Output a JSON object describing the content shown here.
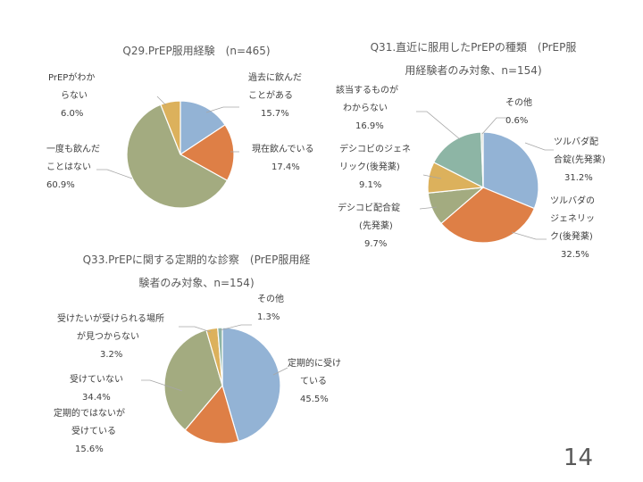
{
  "page_number": "14",
  "chart_data": [
    {
      "type": "pie",
      "title": "Q29.PrEP服用経験　(n=465)",
      "slices": [
        {
          "label_lines": [
            "過去に飲んだ",
            "ことがある"
          ],
          "pct_label": "15.7%",
          "value": 15.7,
          "color": "#93B3D5"
        },
        {
          "label_lines": [
            "現在飲んでいる"
          ],
          "pct_label": "17.4%",
          "value": 17.4,
          "color": "#DE7F46"
        },
        {
          "label_lines": [
            "一度も飲んだ",
            "ことはない"
          ],
          "pct_label": "60.9%",
          "value": 60.9,
          "color": "#A3AB80"
        },
        {
          "label_lines": [
            "PrEPがわか",
            "らない"
          ],
          "pct_label": "6.0%",
          "value": 6.0,
          "color": "#DCB15C"
        }
      ]
    },
    {
      "type": "pie",
      "title_lines": [
        "Q31.直近に服用したPrEPの種類　(PrEP服",
        "用経験者のみ対象、n=154)"
      ],
      "slices": [
        {
          "label_lines": [
            "ツルバダ配",
            "合錠(先発薬)"
          ],
          "pct_label": "31.2%",
          "value": 31.2,
          "color": "#93B3D5"
        },
        {
          "label_lines": [
            "ツルバダの",
            "ジェネリッ",
            "ク(後発薬)"
          ],
          "pct_label": "32.5%",
          "value": 32.5,
          "color": "#DE7F46"
        },
        {
          "label_lines": [
            "デシコビ配合錠",
            "(先発薬)"
          ],
          "pct_label": "9.7%",
          "value": 9.7,
          "color": "#A3AB80"
        },
        {
          "label_lines": [
            "デシコビのジェネ",
            "リック(後発薬)"
          ],
          "pct_label": "9.1%",
          "value": 9.1,
          "color": "#DCB15C"
        },
        {
          "label_lines": [
            "該当するものが",
            "わからない"
          ],
          "pct_label": "16.9%",
          "value": 16.9,
          "color": "#8DB5A5"
        },
        {
          "label_lines": [
            "その他"
          ],
          "pct_label": "0.6%",
          "value": 0.6,
          "color": "#D1D6C5"
        }
      ]
    },
    {
      "type": "pie",
      "title_lines": [
        "Q33.PrEPに関する定期的な診察　(PrEP服用経",
        "験者のみ対象、n=154)"
      ],
      "slices": [
        {
          "label_lines": [
            "定期的に受け",
            "ている"
          ],
          "pct_label": "45.5%",
          "value": 45.5,
          "color": "#93B3D5"
        },
        {
          "label_lines": [
            "定期的ではないが",
            "受けている"
          ],
          "pct_label": "15.6%",
          "value": 15.6,
          "color": "#DE7F46"
        },
        {
          "label_lines": [
            "受けていない"
          ],
          "pct_label": "34.4%",
          "value": 34.4,
          "color": "#A3AB80"
        },
        {
          "label_lines": [
            "受けたいが受けられる場所",
            "が見つからない"
          ],
          "pct_label": "3.2%",
          "value": 3.2,
          "color": "#DCB15C"
        },
        {
          "label_lines": [
            "その他"
          ],
          "pct_label": "1.3%",
          "value": 1.3,
          "color": "#8DB5A5"
        }
      ]
    }
  ]
}
